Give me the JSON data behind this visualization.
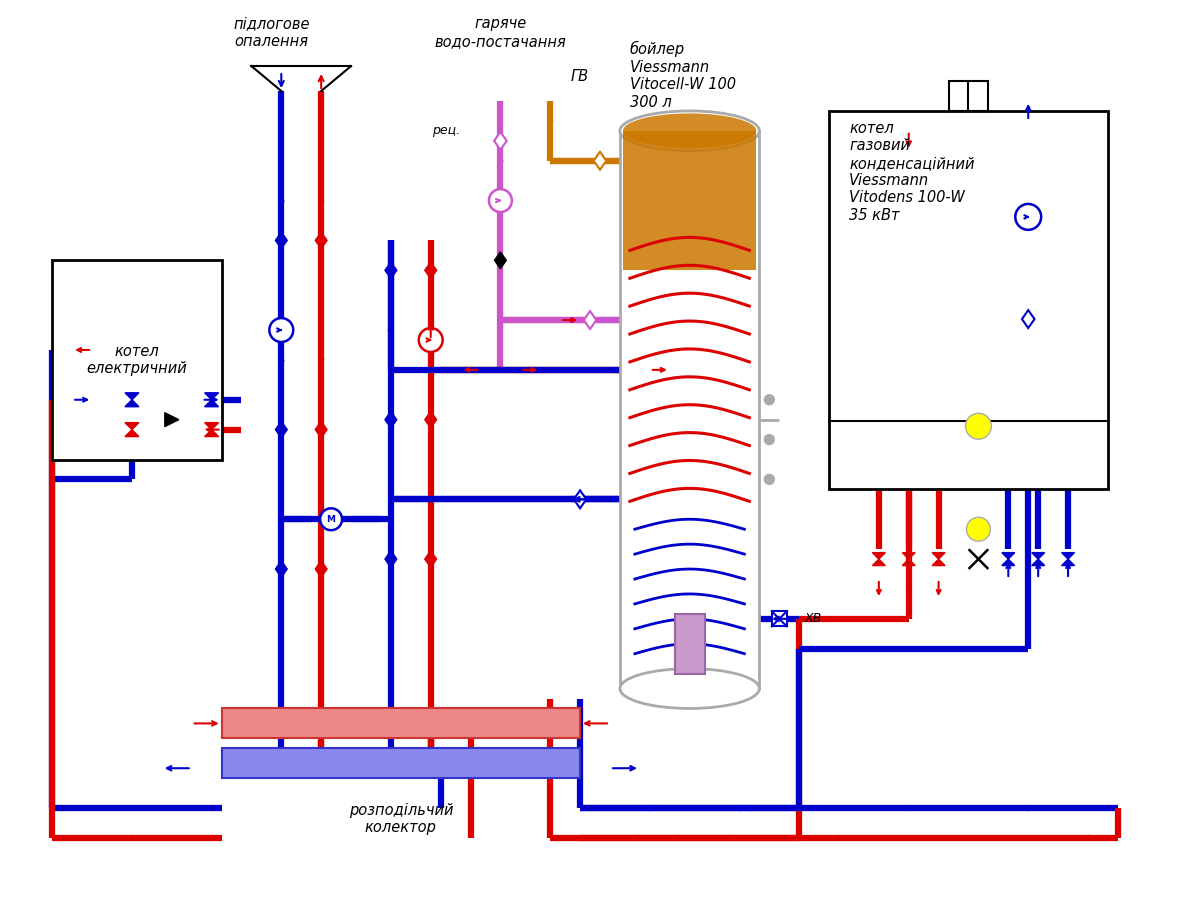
{
  "bg": "#ffffff",
  "red": "#dd0000",
  "blue": "#0000cc",
  "orange": "#cc7700",
  "pink": "#cc55cc",
  "gray": "#aaaaaa",
  "yellow": "#ffff00",
  "black": "#000000",
  "lw": 4.5,
  "lw2": 1.8,
  "lw3": 1.5,
  "fs": 10.5,
  "fs_sm": 9,
  "label_pidlogove": "підлогове\nопалення",
  "label_garyache": "гаряче\nводо-постачання",
  "label_rec": "рец.",
  "label_gv": "ГВ",
  "label_boyler": "бойлер\nViessmann\nVitocell-W 100\n300 л",
  "label_kotel_gaz": "котел\nгазовий\nконденсаційний\nViessmann\nVitodens 100-W\n35 кВт",
  "label_kotel_el": "котел\nелектричний",
  "label_kolektor": "розподільчий\nколектор",
  "label_xv": "ХВ"
}
